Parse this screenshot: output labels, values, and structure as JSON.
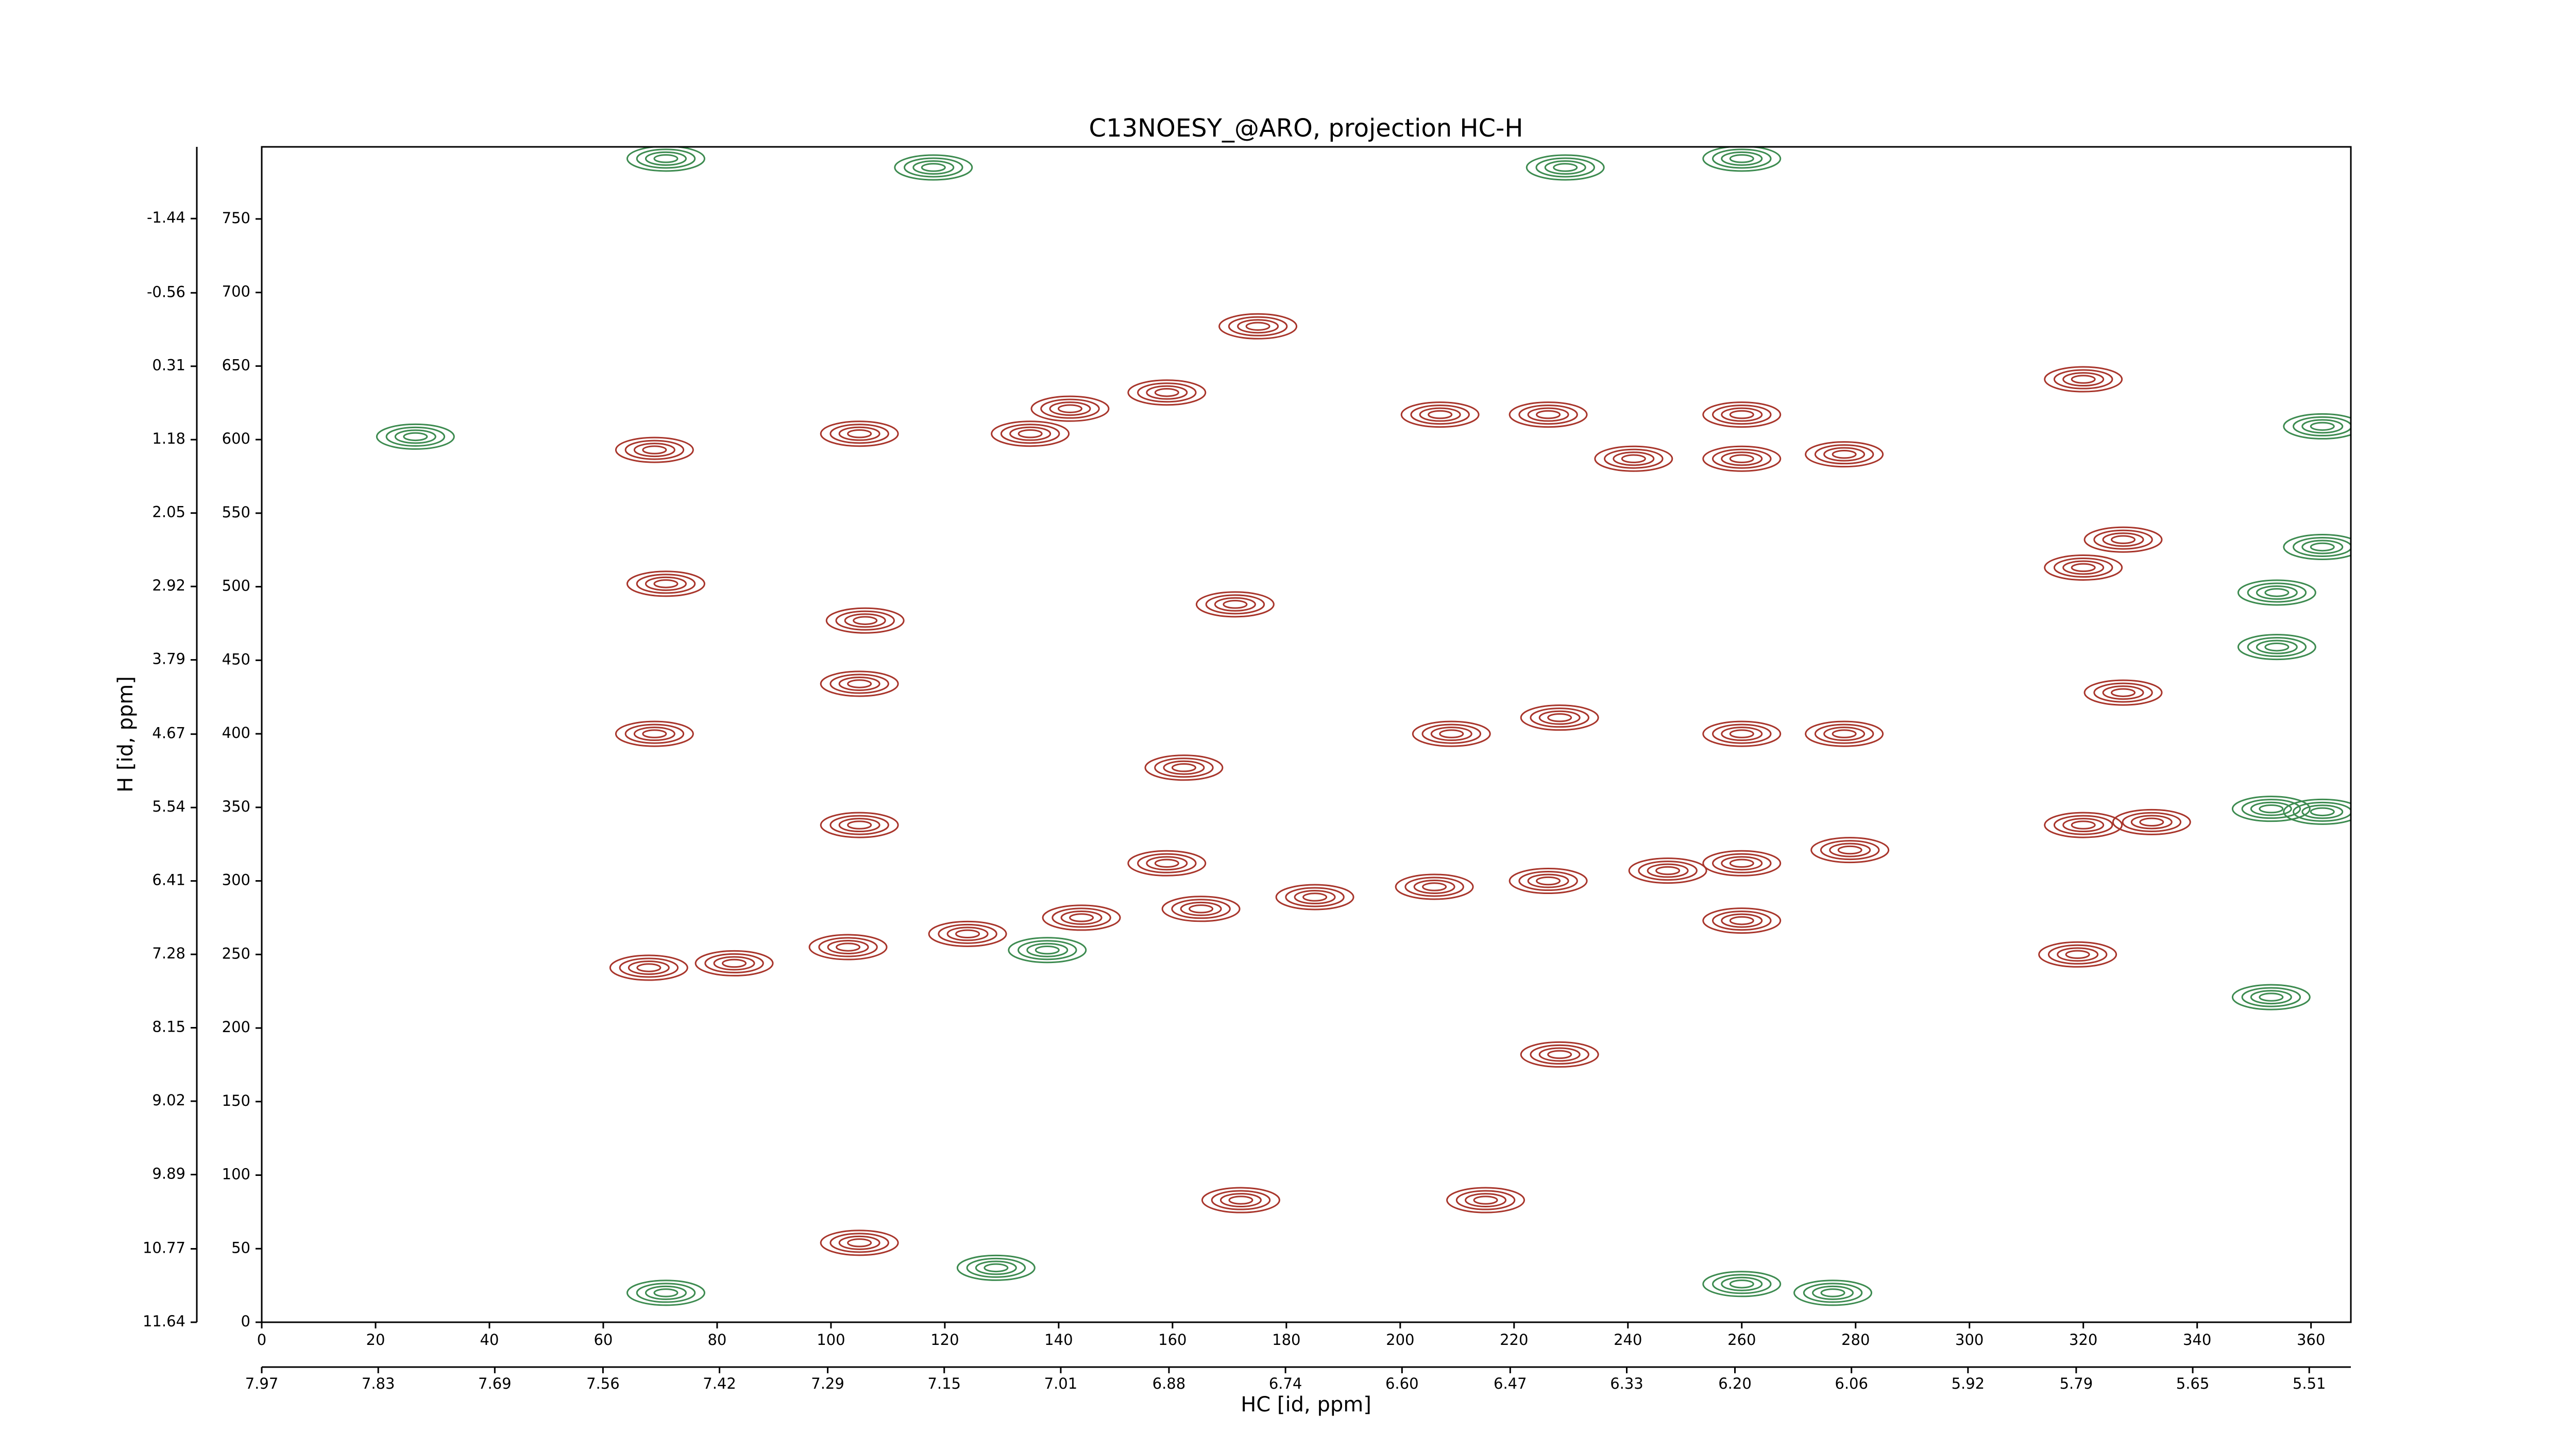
{
  "chart_data": {
    "type": "contour",
    "title": "C13NOESY_@ARO, projection HC-H",
    "x_label": "HC [id, ppm]",
    "y_label": "H [id, ppm]",
    "xlim": [
      0,
      367
    ],
    "ylim": [
      0,
      799
    ],
    "xticks": [
      0,
      20,
      40,
      60,
      80,
      100,
      120,
      140,
      160,
      180,
      200,
      220,
      240,
      260,
      280,
      300,
      320,
      340,
      360
    ],
    "yticks": [
      0,
      50,
      100,
      150,
      200,
      250,
      300,
      350,
      400,
      450,
      500,
      550,
      600,
      650,
      700,
      750
    ],
    "x2lim": [
      7.97,
      5.46
    ],
    "x2ticks": [
      7.97,
      7.83,
      7.69,
      7.56,
      7.42,
      7.29,
      7.15,
      7.01,
      6.88,
      6.74,
      {
        "value": 6.6,
        "label": "6.60"
      },
      6.47,
      6.33,
      {
        "value": 6.2,
        "label": "6.20"
      },
      6.06,
      5.92,
      5.79,
      5.65,
      5.51
    ],
    "y2lim": [
      11.64,
      -2.29
    ],
    "y2ticks": [
      11.64,
      10.77,
      9.89,
      9.02,
      8.15,
      7.28,
      6.41,
      5.54,
      4.67,
      3.79,
      2.92,
      2.05,
      1.18,
      0.31,
      -0.56,
      -1.44
    ],
    "series": [
      {
        "color": "#a8352b",
        "x": [
          68,
          83,
          103,
          124,
          144,
          165,
          185,
          206,
          226,
          247,
          260,
          279,
          320,
          332,
          71,
          69,
          69,
          105,
          105,
          105,
          135,
          142,
          159,
          175,
          159,
          207,
          226,
          228,
          241,
          260,
          260,
          260,
          278,
          278,
          320,
          320,
          327,
          327,
          319,
          260,
          172,
          105,
          215,
          228,
          171,
          106,
          209,
          162
        ],
        "y": [
          241,
          244,
          255,
          264,
          275,
          281,
          289,
          296,
          300,
          307,
          312,
          321,
          338,
          340,
          502,
          593,
          400,
          604,
          338,
          434,
          604,
          621,
          632,
          677,
          312,
          617,
          617,
          411,
          587,
          617,
          587,
          400,
          590,
          400,
          641,
          513,
          532,
          428,
          250,
          273,
          83,
          54,
          83,
          182,
          488,
          477,
          400,
          377
        ]
      },
      {
        "color": "#3d8b50",
        "x": [
          362,
          353,
          353,
          354,
          354,
          362,
          362,
          27,
          138,
          71,
          118,
          229,
          260,
          71,
          129,
          260,
          276
        ],
        "y": [
          347,
          349,
          221,
          459,
          496,
          609,
          527,
          602,
          253,
          791,
          785,
          785,
          791,
          20,
          37,
          26,
          20
        ]
      }
    ]
  }
}
